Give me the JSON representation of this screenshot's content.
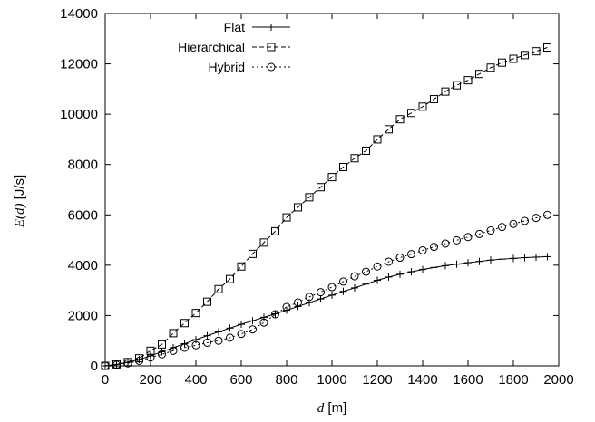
{
  "chart_data": {
    "type": "line",
    "title": "",
    "xlabel": {
      "var": "d",
      "unit": " [m]"
    },
    "ylabel": {
      "var": "E(d)",
      "unit": " [J/s]"
    },
    "xlim": [
      0,
      2000
    ],
    "ylim": [
      0,
      14000
    ],
    "xticks": [
      0,
      200,
      400,
      600,
      800,
      1000,
      1200,
      1400,
      1600,
      1800,
      2000
    ],
    "yticks": [
      0,
      2000,
      4000,
      6000,
      8000,
      10000,
      12000,
      14000
    ],
    "grid": false,
    "legend_position": "top-left",
    "x": [
      0,
      50,
      100,
      150,
      200,
      250,
      300,
      350,
      400,
      450,
      500,
      550,
      600,
      650,
      700,
      750,
      800,
      850,
      900,
      950,
      1000,
      1050,
      1100,
      1150,
      1200,
      1250,
      1300,
      1350,
      1400,
      1450,
      1500,
      1550,
      1600,
      1650,
      1700,
      1750,
      1800,
      1850,
      1900,
      1950
    ],
    "series": [
      {
        "name": "Flat",
        "marker": "plus",
        "line": "solid",
        "values": [
          0,
          60,
          140,
          250,
          400,
          560,
          720,
          880,
          1040,
          1200,
          1350,
          1500,
          1650,
          1790,
          1930,
          2070,
          2210,
          2360,
          2510,
          2660,
          2810,
          2960,
          3100,
          3250,
          3400,
          3530,
          3640,
          3740,
          3830,
          3910,
          3980,
          4040,
          4100,
          4150,
          4200,
          4240,
          4270,
          4300,
          4320,
          4340
        ]
      },
      {
        "name": "Hierarchical",
        "marker": "square",
        "line": "dashed",
        "values": [
          0,
          60,
          150,
          300,
          600,
          850,
          1300,
          1700,
          2100,
          2550,
          3050,
          3450,
          3950,
          4450,
          4900,
          5350,
          5900,
          6300,
          6700,
          7100,
          7500,
          7900,
          8250,
          8550,
          9000,
          9400,
          9800,
          10050,
          10300,
          10600,
          10900,
          11150,
          11350,
          11600,
          11850,
          12050,
          12200,
          12350,
          12500,
          12650
        ]
      },
      {
        "name": "Hybrid",
        "marker": "circle",
        "line": "dotted",
        "values": [
          0,
          40,
          100,
          200,
          330,
          460,
          600,
          720,
          820,
          920,
          1000,
          1120,
          1270,
          1450,
          1720,
          2050,
          2340,
          2520,
          2740,
          2930,
          3130,
          3350,
          3560,
          3740,
          3950,
          4140,
          4300,
          4440,
          4590,
          4730,
          4860,
          4990,
          5120,
          5240,
          5380,
          5520,
          5640,
          5760,
          5880,
          6000
        ]
      }
    ]
  }
}
